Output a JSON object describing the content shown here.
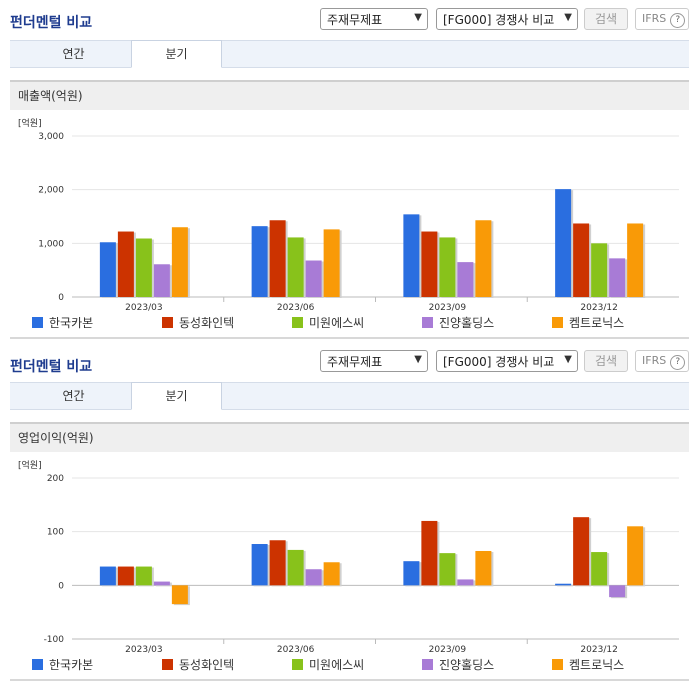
{
  "panels": [
    {
      "title": "펀더멘털 비교",
      "select1": "주재무제표",
      "select2": "[FG000] 경쟁사 비교",
      "search_label": "검색",
      "ifrs_label": "IFRS",
      "ifrs_help": "?",
      "tabs": [
        {
          "label": "연간"
        },
        {
          "label": "분기"
        }
      ],
      "active_tab": 1,
      "metric": "매출액(억원)"
    },
    {
      "title": "펀더멘털 비교",
      "select1": "주재무제표",
      "select2": "[FG000] 경쟁사 비교",
      "search_label": "검색",
      "ifrs_label": "IFRS",
      "ifrs_help": "?",
      "tabs": [
        {
          "label": "연간"
        },
        {
          "label": "분기"
        }
      ],
      "active_tab": 1,
      "metric": "영업이익(억원)"
    }
  ],
  "chart_data": [
    {
      "type": "bar",
      "title": "매출액(억원)",
      "unit_label": "[억원]",
      "categories": [
        "2023/03",
        "2023/06",
        "2023/09",
        "2023/12"
      ],
      "ylim": [
        0,
        3000
      ],
      "yticks": [
        0,
        1000,
        2000,
        3000
      ],
      "ytick_labels": [
        "0",
        "1,000",
        "2,000",
        "3,000"
      ],
      "grid": true,
      "legend": "bottom",
      "series": [
        {
          "name": "한국카본",
          "color": "#2a6ee0",
          "values": [
            1020,
            1320,
            1540,
            2010
          ]
        },
        {
          "name": "동성화인텍",
          "color": "#cc3300",
          "values": [
            1220,
            1430,
            1220,
            1370
          ]
        },
        {
          "name": "미원에스씨",
          "color": "#88c21b",
          "values": [
            1090,
            1110,
            1110,
            1000
          ]
        },
        {
          "name": "진양홀딩스",
          "color": "#a87bd6",
          "values": [
            610,
            680,
            650,
            720
          ]
        },
        {
          "name": "켐트로닉스",
          "color": "#f99a07",
          "values": [
            1300,
            1260,
            1430,
            1370
          ]
        }
      ]
    },
    {
      "type": "bar",
      "title": "영업이익(억원)",
      "unit_label": "[억원]",
      "categories": [
        "2023/03",
        "2023/06",
        "2023/09",
        "2023/12"
      ],
      "ylim": [
        -100,
        200
      ],
      "yticks": [
        -100,
        0,
        100,
        200
      ],
      "ytick_labels": [
        "-100",
        "0",
        "100",
        "200"
      ],
      "grid": true,
      "legend": "bottom",
      "series": [
        {
          "name": "한국카본",
          "color": "#2a6ee0",
          "values": [
            35,
            77,
            45,
            3
          ]
        },
        {
          "name": "동성화인텍",
          "color": "#cc3300",
          "values": [
            35,
            84,
            120,
            127
          ]
        },
        {
          "name": "미원에스씨",
          "color": "#88c21b",
          "values": [
            35,
            66,
            60,
            62
          ]
        },
        {
          "name": "진양홀딩스",
          "color": "#a87bd6",
          "values": [
            7,
            30,
            11,
            -22
          ]
        },
        {
          "name": "켐트로닉스",
          "color": "#f99a07",
          "values": [
            -35,
            43,
            64,
            110
          ]
        }
      ]
    }
  ]
}
